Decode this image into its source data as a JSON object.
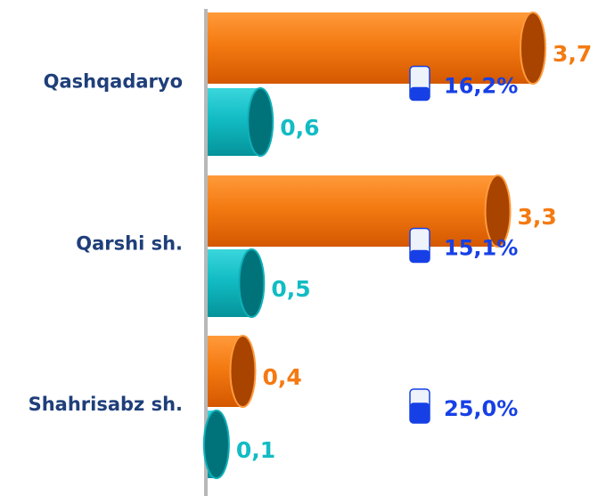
{
  "chart_data": {
    "type": "bar",
    "categories": [
      "Qashqadaryo",
      "Qarshi sh.",
      "Shahrisabz sh."
    ],
    "series": [
      {
        "color": "#f47a12",
        "values": [
          3.7,
          3.3,
          0.4
        ],
        "value_labels": [
          "3,7",
          "3,3",
          "0,4"
        ]
      },
      {
        "color": "#12bcc4",
        "values": [
          0.6,
          0.5,
          0.1
        ],
        "value_labels": [
          "0,6",
          "0,5",
          "0,1"
        ]
      }
    ],
    "shares": {
      "color": "#1640e6",
      "values": [
        16.2,
        15.1,
        25.0
      ],
      "value_labels": [
        "16,2%",
        "15,1%",
        "25,0%"
      ]
    }
  }
}
